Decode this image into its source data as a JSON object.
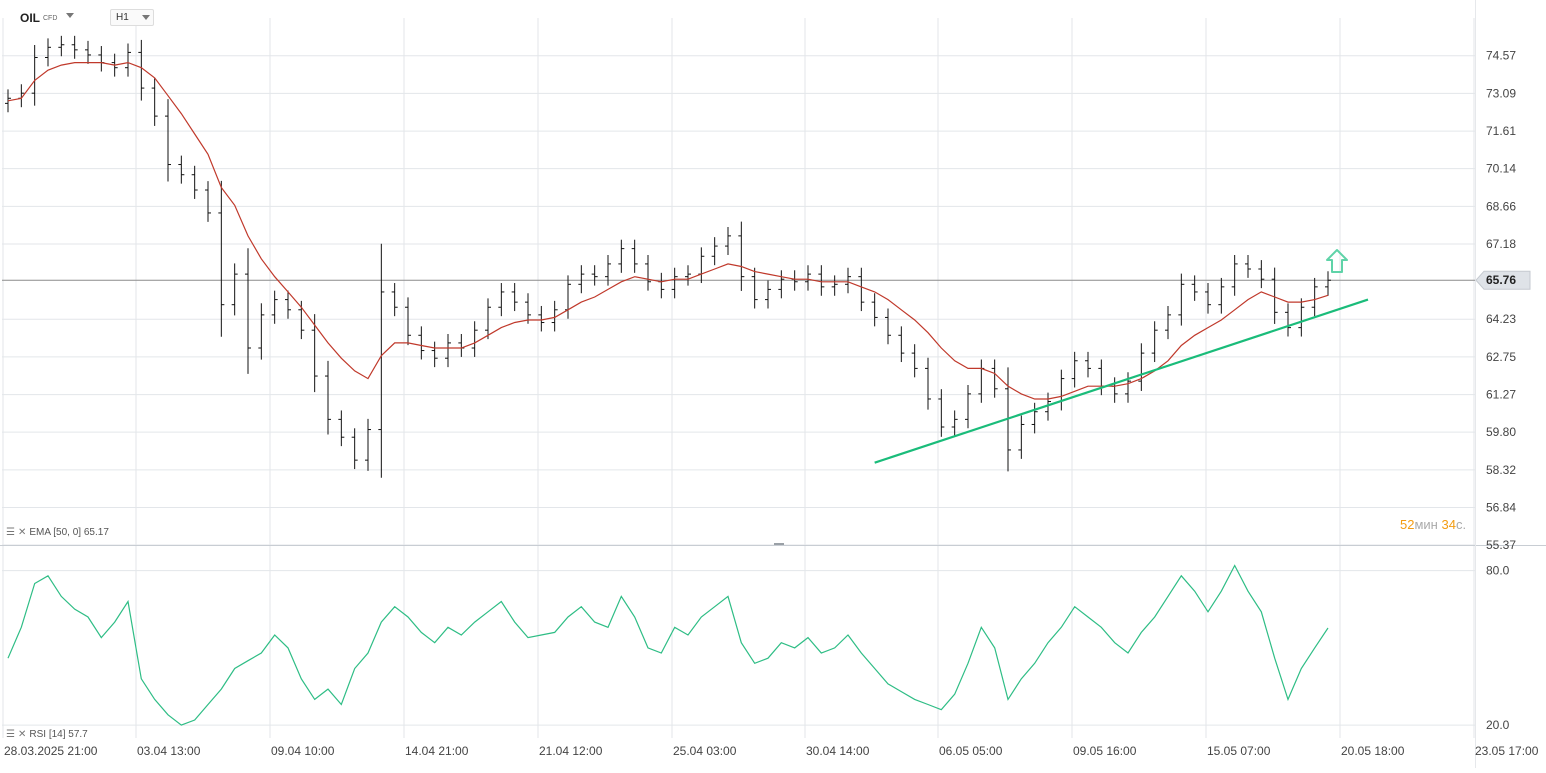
{
  "header": {
    "symbol": "OIL",
    "symbol_type": "CFD",
    "timeframe": "H1"
  },
  "indicators": {
    "ema_label": "EMA",
    "ema_params": "[50, 0]",
    "ema_value": "65.17",
    "rsi_label": "RSI",
    "rsi_params": "[14]",
    "rsi_value": "57.7"
  },
  "countdown": {
    "minutes": "52",
    "minutes_unit": "мин",
    "seconds": "34",
    "seconds_unit": "с."
  },
  "colors": {
    "bars": "#111111",
    "ema": "#c0392b",
    "trendline": "#1abc7a",
    "rsi": "#2ebd85",
    "arrow": "#5fd3a8",
    "grid": "#e3e6ea",
    "current_price_line": "#8c8c8c",
    "price_tag_bg": "#dfe3e8"
  },
  "icons": {
    "arrow": "arrow-up-icon",
    "indicator_menu": "lines-icon",
    "indicator_close": "close-icon"
  },
  "chart_data": [
    {
      "type": "candlestick-ohlc",
      "title": "OIL CFD H1",
      "ylim": [
        55.37,
        76.05
      ],
      "ytick_labels": [
        "74.57",
        "73.09",
        "71.61",
        "70.14",
        "68.66",
        "67.18",
        "65.76",
        "64.23",
        "62.75",
        "61.27",
        "59.80",
        "58.32",
        "56.84",
        "55.37"
      ],
      "ytick_values": [
        74.57,
        73.09,
        71.61,
        70.14,
        68.66,
        67.18,
        65.76,
        64.23,
        62.75,
        61.27,
        59.8,
        58.32,
        56.84,
        55.37
      ],
      "xtick_labels": [
        "28.03.2025  21:00",
        "03.04  13:00",
        "09.04  10:00",
        "14.04  21:00",
        "21.04  12:00",
        "25.04  03:00",
        "30.04  14:00",
        "06.05  05:00",
        "09.05  16:00",
        "15.05  07:00",
        "20.05  18:00",
        "23.05  17:00"
      ],
      "current_price": 65.76,
      "grid": true,
      "series": [
        {
          "name": "OIL",
          "x_index": [
            0,
            1,
            2,
            3,
            4,
            5,
            6,
            7,
            8,
            9,
            10,
            11,
            12,
            13,
            14,
            15,
            16,
            17,
            18,
            19,
            20,
            21,
            22,
            23,
            24,
            25,
            26,
            27,
            28,
            29,
            30,
            31,
            32,
            33,
            34,
            35,
            36,
            37,
            38,
            39,
            40,
            41,
            42,
            43,
            44,
            45,
            46,
            47,
            48,
            49,
            50,
            51,
            52,
            53,
            54,
            55,
            56,
            57,
            58,
            59,
            60,
            61,
            62,
            63,
            64,
            65,
            66,
            67,
            68,
            69,
            70,
            71,
            72,
            73,
            74,
            75,
            76,
            77,
            78,
            79,
            80,
            81,
            82,
            83,
            84,
            85,
            86,
            87,
            88,
            89,
            90,
            91,
            92,
            93,
            94,
            95,
            96,
            97,
            98,
            99
          ],
          "close": [
            72.9,
            73.1,
            74.5,
            74.9,
            75.0,
            74.8,
            74.6,
            74.3,
            74.1,
            74.7,
            73.3,
            72.2,
            70.3,
            69.9,
            69.3,
            68.4,
            64.8,
            66.0,
            63.1,
            64.4,
            65.0,
            64.6,
            63.8,
            62.0,
            60.3,
            59.6,
            58.7,
            59.9,
            65.3,
            64.7,
            63.6,
            63.0,
            62.7,
            63.3,
            63.1,
            63.8,
            64.7,
            65.3,
            64.9,
            64.4,
            64.1,
            64.6,
            65.6,
            66.0,
            65.9,
            66.4,
            67.0,
            66.4,
            65.7,
            65.4,
            65.9,
            66.0,
            66.7,
            67.1,
            67.5,
            65.9,
            65.0,
            65.4,
            65.8,
            65.7,
            66.0,
            65.5,
            65.6,
            65.9,
            64.9,
            64.3,
            63.6,
            62.9,
            62.3,
            61.1,
            60.0,
            60.3,
            61.3,
            62.3,
            61.5,
            59.1,
            60.1,
            60.6,
            61.0,
            61.9,
            62.6,
            62.3,
            61.6,
            61.3,
            61.8,
            62.9,
            63.8,
            64.4,
            65.6,
            65.3,
            64.8,
            65.5,
            66.4,
            66.2,
            65.8,
            64.5,
            63.9,
            64.7,
            65.5,
            65.76
          ],
          "ema_50": [
            72.8,
            72.9,
            73.6,
            74.0,
            74.2,
            74.3,
            74.3,
            74.3,
            74.2,
            74.3,
            74.1,
            73.7,
            73.0,
            72.3,
            71.5,
            70.7,
            69.4,
            68.7,
            67.5,
            66.6,
            65.9,
            65.3,
            64.7,
            64.0,
            63.3,
            62.7,
            62.2,
            61.9,
            62.8,
            63.3,
            63.3,
            63.2,
            63.1,
            63.1,
            63.1,
            63.3,
            63.6,
            63.9,
            64.1,
            64.2,
            64.2,
            64.3,
            64.6,
            64.9,
            65.1,
            65.4,
            65.7,
            65.9,
            65.8,
            65.7,
            65.8,
            65.8,
            66.0,
            66.2,
            66.4,
            66.3,
            66.1,
            66.0,
            65.9,
            65.8,
            65.8,
            65.7,
            65.7,
            65.7,
            65.5,
            65.3,
            65.0,
            64.6,
            64.2,
            63.7,
            63.1,
            62.6,
            62.3,
            62.3,
            62.1,
            61.6,
            61.3,
            61.1,
            61.1,
            61.2,
            61.4,
            61.6,
            61.6,
            61.6,
            61.7,
            61.9,
            62.2,
            62.6,
            63.2,
            63.6,
            63.9,
            64.2,
            64.6,
            65.0,
            65.3,
            65.1,
            64.9,
            64.9,
            65.0,
            65.17
          ]
        },
        {
          "name": "Trend line",
          "x_index": [
            65,
            102
          ],
          "values": [
            58.6,
            65.0
          ]
        }
      ]
    },
    {
      "type": "line",
      "title": "RSI [14]",
      "ylim": [
        15,
        88
      ],
      "ytick_labels": [
        "80.0",
        "20.0"
      ],
      "ytick_values": [
        80,
        20
      ],
      "grid": true,
      "series": [
        {
          "name": "RSI",
          "x_index": [
            0,
            1,
            2,
            3,
            4,
            5,
            6,
            7,
            8,
            9,
            10,
            11,
            12,
            13,
            14,
            15,
            16,
            17,
            18,
            19,
            20,
            21,
            22,
            23,
            24,
            25,
            26,
            27,
            28,
            29,
            30,
            31,
            32,
            33,
            34,
            35,
            36,
            37,
            38,
            39,
            40,
            41,
            42,
            43,
            44,
            45,
            46,
            47,
            48,
            49,
            50,
            51,
            52,
            53,
            54,
            55,
            56,
            57,
            58,
            59,
            60,
            61,
            62,
            63,
            64,
            65,
            66,
            67,
            68,
            69,
            70,
            71,
            72,
            73,
            74,
            75,
            76,
            77,
            78,
            79,
            80,
            81,
            82,
            83,
            84,
            85,
            86,
            87,
            88,
            89,
            90,
            91,
            92,
            93,
            94,
            95,
            96,
            97,
            98,
            99
          ],
          "values": [
            46,
            58,
            75,
            78,
            70,
            65,
            62,
            54,
            60,
            68,
            38,
            30,
            24,
            20,
            22,
            28,
            34,
            42,
            45,
            48,
            55,
            50,
            38,
            30,
            34,
            28,
            42,
            48,
            60,
            66,
            62,
            56,
            52,
            58,
            55,
            60,
            64,
            68,
            60,
            54,
            55,
            56,
            62,
            66,
            60,
            58,
            70,
            62,
            50,
            48,
            58,
            55,
            62,
            66,
            70,
            52,
            44,
            46,
            52,
            50,
            54,
            48,
            50,
            55,
            48,
            42,
            36,
            33,
            30,
            28,
            26,
            32,
            44,
            58,
            50,
            30,
            38,
            44,
            52,
            58,
            66,
            62,
            58,
            52,
            48,
            56,
            62,
            70,
            78,
            72,
            64,
            72,
            82,
            72,
            64,
            46,
            30,
            42,
            50,
            57.7
          ]
        }
      ]
    }
  ]
}
